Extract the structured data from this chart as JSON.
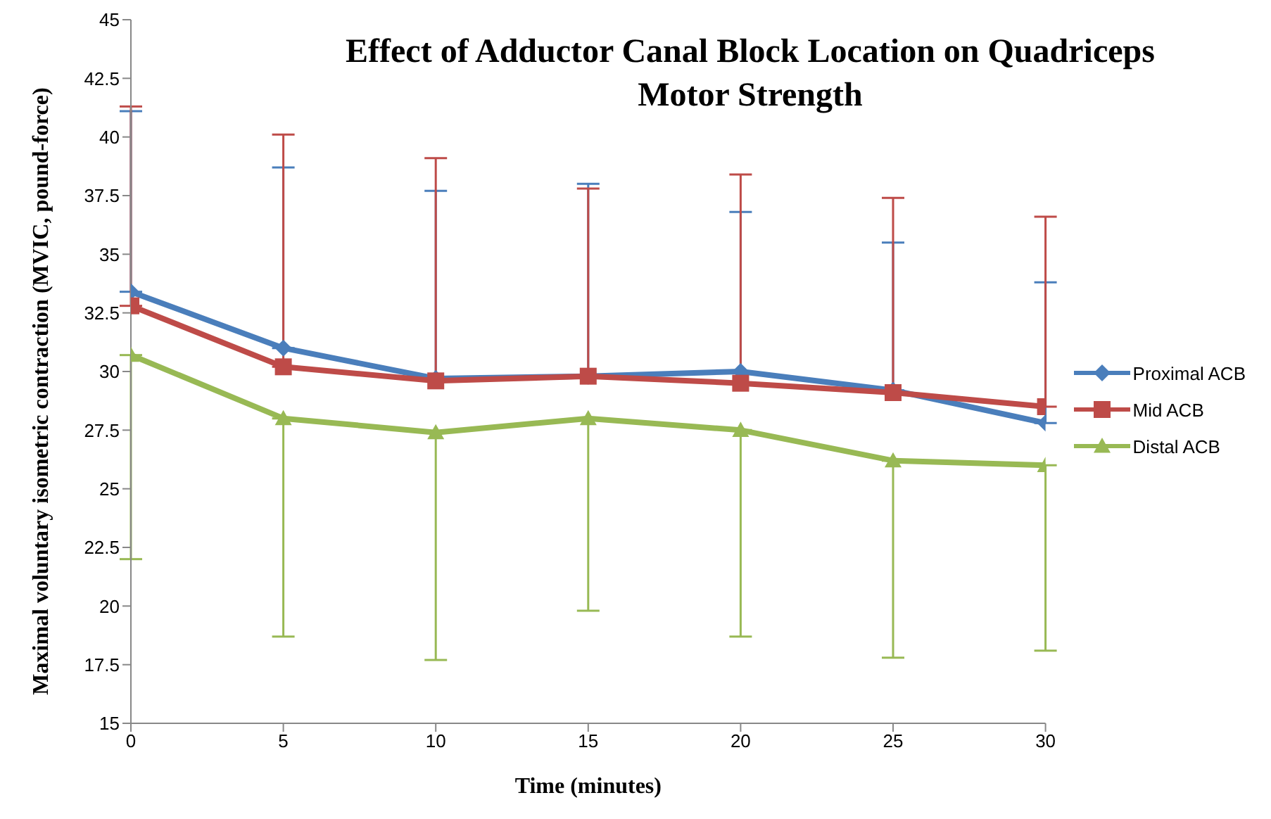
{
  "chart_data": {
    "type": "line",
    "title": "Effect of Adductor Canal Block Location on Quadriceps Motor Strength",
    "xlabel": "Time (minutes)",
    "ylabel": "Maximal voluntary isometric contraction (MVIC, pound-force)",
    "x": [
      0,
      5,
      10,
      15,
      20,
      25,
      30
    ],
    "series": [
      {
        "name": "Proximal ACB",
        "color": "#4a7ebb",
        "marker": "diamond",
        "values": [
          33.4,
          31.0,
          29.7,
          29.8,
          30.0,
          29.2,
          27.8
        ],
        "errors": [
          [
            33.4,
            41.1
          ],
          [
            31.0,
            38.7
          ],
          [
            29.7,
            37.7
          ],
          [
            29.8,
            38.0
          ],
          [
            30.0,
            36.8
          ],
          [
            29.2,
            35.5
          ],
          [
            27.8,
            33.8
          ]
        ]
      },
      {
        "name": "Mid ACB",
        "color": "#be4b48",
        "marker": "square",
        "values": [
          32.8,
          30.2,
          29.6,
          29.8,
          29.5,
          29.1,
          28.5
        ],
        "errors": [
          [
            32.8,
            41.3
          ],
          [
            30.2,
            40.1
          ],
          [
            29.6,
            39.1
          ],
          [
            29.8,
            37.8
          ],
          [
            29.5,
            38.4
          ],
          [
            29.1,
            37.4
          ],
          [
            28.5,
            36.6
          ]
        ]
      },
      {
        "name": "Distal ACB",
        "color": "#98b954",
        "marker": "triangle",
        "values": [
          30.7,
          28.0,
          27.4,
          28.0,
          27.5,
          26.2,
          26.0
        ],
        "errors": [
          [
            22.0,
            30.7
          ],
          [
            18.7,
            28.0
          ],
          [
            17.7,
            27.4
          ],
          [
            19.8,
            28.0
          ],
          [
            18.7,
            27.5
          ],
          [
            17.8,
            26.2
          ],
          [
            18.1,
            26.0
          ]
        ]
      }
    ],
    "xlim": [
      0,
      30
    ],
    "xticks": [
      0,
      5,
      10,
      15,
      20,
      25,
      30
    ],
    "ylim": [
      15,
      45
    ],
    "yticks": [
      15,
      17.5,
      20,
      22.5,
      25,
      27.5,
      30,
      32.5,
      35,
      37.5,
      40,
      42.5,
      45
    ],
    "grid": false,
    "legend": "right",
    "line_style": "solid"
  }
}
